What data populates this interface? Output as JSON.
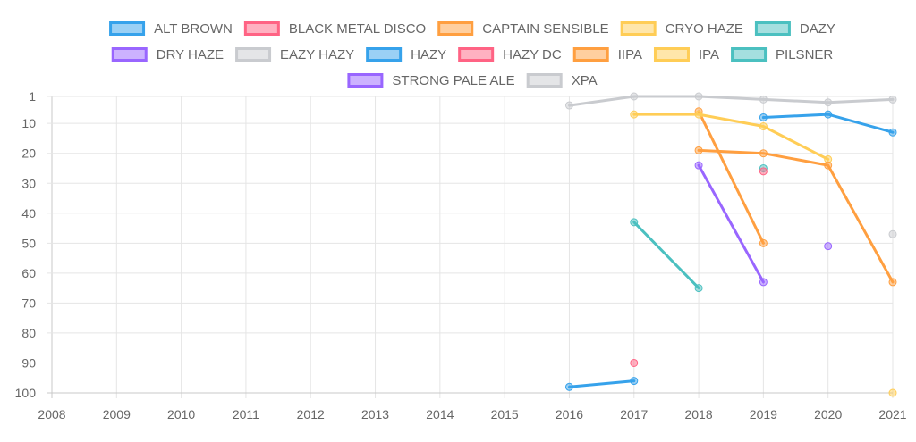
{
  "chart_data": {
    "type": "line",
    "title": "",
    "xlabel": "",
    "ylabel": "",
    "x_ticks": [
      "2008",
      "2009",
      "2010",
      "2011",
      "2012",
      "2013",
      "2014",
      "2015",
      "2016",
      "2017",
      "2018",
      "2019",
      "2020",
      "2021"
    ],
    "y_ticks": [
      "1",
      "10",
      "20",
      "30",
      "40",
      "50",
      "60",
      "70",
      "80",
      "90",
      "100"
    ],
    "xlim": [
      2008,
      2021
    ],
    "ylim": [
      1,
      100
    ],
    "y_reversed": true,
    "grid": true,
    "legend_position": "top",
    "series": [
      {
        "name": "ALT BROWN",
        "color": "#36a2eb",
        "points": [
          {
            "x": 2016,
            "y": 98
          },
          {
            "x": 2017,
            "y": 96
          }
        ]
      },
      {
        "name": "BLACK METAL DISCO",
        "color": "#ff6384",
        "points": [
          {
            "x": 2017,
            "y": 90
          }
        ]
      },
      {
        "name": "CAPTAIN SENSIBLE",
        "color": "#ff9f40",
        "points": [
          {
            "x": 2018,
            "y": 6
          },
          {
            "x": 2019,
            "y": 50
          }
        ]
      },
      {
        "name": "CRYO HAZE",
        "color": "#ffcd56",
        "points": [
          {
            "x": 2017,
            "y": 7
          },
          {
            "x": 2018,
            "y": 7
          },
          {
            "x": 2019,
            "y": 11
          },
          {
            "x": 2020,
            "y": 22
          }
        ]
      },
      {
        "name": "DAZY",
        "color": "#4bc0c0",
        "points": [
          {
            "x": 2019,
            "y": 25
          }
        ]
      },
      {
        "name": "DRY HAZE",
        "color": "#9966ff",
        "points": [
          {
            "x": 2020,
            "y": 51
          }
        ]
      },
      {
        "name": "EAZY HAZY",
        "color": "#c9cbcf",
        "points": [
          {
            "x": 2021,
            "y": 47
          }
        ]
      },
      {
        "name": "HAZY",
        "color": "#36a2eb",
        "points": [
          {
            "x": 2019,
            "y": 8
          },
          {
            "x": 2020,
            "y": 7
          },
          {
            "x": 2021,
            "y": 13
          }
        ]
      },
      {
        "name": "HAZY DC",
        "color": "#ff6384",
        "points": [
          {
            "x": 2019,
            "y": 26
          }
        ]
      },
      {
        "name": "IIPA",
        "color": "#ff9f40",
        "points": [
          {
            "x": 2018,
            "y": 19
          },
          {
            "x": 2019,
            "y": 20
          },
          {
            "x": 2020,
            "y": 24
          },
          {
            "x": 2021,
            "y": 63
          }
        ]
      },
      {
        "name": "IPA",
        "color": "#ffcd56",
        "points": [
          {
            "x": 2021,
            "y": 100
          }
        ]
      },
      {
        "name": "PILSNER",
        "color": "#4bc0c0",
        "points": [
          {
            "x": 2017,
            "y": 43
          },
          {
            "x": 2018,
            "y": 65
          }
        ]
      },
      {
        "name": "STRONG PALE ALE",
        "color": "#9966ff",
        "points": [
          {
            "x": 2018,
            "y": 24
          },
          {
            "x": 2019,
            "y": 63
          }
        ]
      },
      {
        "name": "XPA",
        "color": "#c9cbcf",
        "points": [
          {
            "x": 2016,
            "y": 4
          },
          {
            "x": 2017,
            "y": 1
          },
          {
            "x": 2018,
            "y": 1
          },
          {
            "x": 2019,
            "y": 2
          },
          {
            "x": 2020,
            "y": 3
          },
          {
            "x": 2021,
            "y": 2
          }
        ]
      }
    ]
  }
}
